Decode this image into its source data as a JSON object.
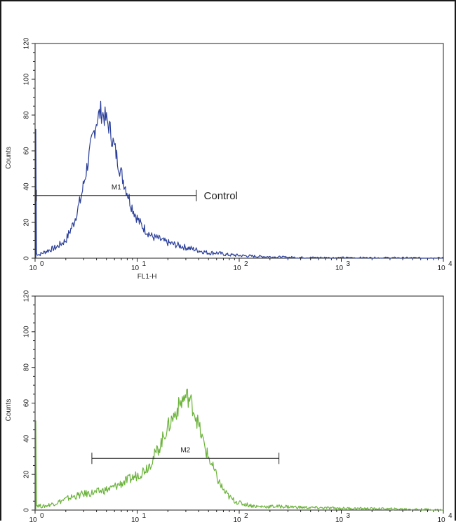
{
  "chart_data": [
    {
      "type": "line",
      "title": "",
      "xlabel": "FL1-H",
      "ylabel": "Counts",
      "xscale": "log",
      "xlim": [
        1,
        10000
      ],
      "ylim": [
        0,
        120
      ],
      "x_ticks": [
        {
          "base": "10",
          "exp": "0"
        },
        {
          "base": "10",
          "exp": "1"
        },
        {
          "base": "10",
          "exp": "2"
        },
        {
          "base": "10",
          "exp": "3"
        },
        {
          "base": "10",
          "exp": "4"
        }
      ],
      "y_ticks": [
        "0",
        "20",
        "40",
        "60",
        "80",
        "100",
        "120"
      ],
      "series": [
        {
          "color": "#2b3f9a",
          "x": [
            1,
            1.1,
            1.3,
            1.6,
            2.0,
            2.4,
            2.8,
            3.2,
            3.6,
            4.0,
            4.4,
            4.8,
            5.3,
            5.8,
            6.3,
            7.0,
            7.8,
            8.6,
            9.5,
            10.5,
            12,
            14,
            16,
            19,
            22,
            26,
            30,
            36,
            42,
            50,
            60,
            75,
            100,
            150,
            220,
            350,
            600,
            1000,
            10000
          ],
          "y": [
            3,
            2,
            4,
            6,
            10,
            20,
            33,
            50,
            65,
            77,
            82,
            79,
            74,
            65,
            57,
            47,
            39,
            31,
            25,
            20,
            16,
            12,
            11,
            9,
            8,
            7,
            6,
            5,
            4,
            3,
            3,
            2,
            1.5,
            1,
            0.7,
            0.4,
            0.3,
            0.2,
            0
          ]
        }
      ],
      "markers": [
        {
          "label": "M1",
          "from": 1.03,
          "to": 38,
          "y": 35
        }
      ],
      "annotations": [
        {
          "text": "Control",
          "x": 45,
          "y": 35
        }
      ]
    },
    {
      "type": "line",
      "title": "",
      "xlabel": "",
      "ylabel": "Counts",
      "xscale": "log",
      "xlim": [
        1,
        10000
      ],
      "ylim": [
        0,
        120
      ],
      "x_ticks": [
        {
          "base": "10",
          "exp": "0"
        },
        {
          "base": "10",
          "exp": "1"
        },
        {
          "base": "10",
          "exp": "2"
        },
        {
          "base": "10",
          "exp": "3"
        },
        {
          "base": "10",
          "exp": "4"
        }
      ],
      "y_ticks": [
        "0",
        "20",
        "40",
        "60",
        "80",
        "100",
        "120"
      ],
      "series": [
        {
          "color": "#6bb33a",
          "x": [
            1,
            1.2,
            1.6,
            2.2,
            3.0,
            4.0,
            5.5,
            7.0,
            9.0,
            11,
            13,
            15,
            17,
            19,
            22,
            25,
            28,
            31,
            34,
            38,
            43,
            48,
            55,
            63,
            72,
            85,
            100,
            120,
            150,
            200,
            280,
            400,
            700,
            1000,
            2000,
            5000,
            10000
          ],
          "y": [
            3,
            2,
            4,
            7,
            9,
            10,
            12,
            15,
            18,
            21,
            25,
            31,
            37,
            44,
            51,
            57,
            62,
            64,
            60,
            52,
            41,
            32,
            24,
            16,
            10,
            6,
            4,
            3,
            2,
            2,
            2,
            1.5,
            1.2,
            1,
            0.8,
            0.5,
            0
          ]
        }
      ],
      "markers": [
        {
          "label": "M2",
          "from": 3.6,
          "to": 245,
          "y": 29
        }
      ],
      "annotations": []
    }
  ]
}
